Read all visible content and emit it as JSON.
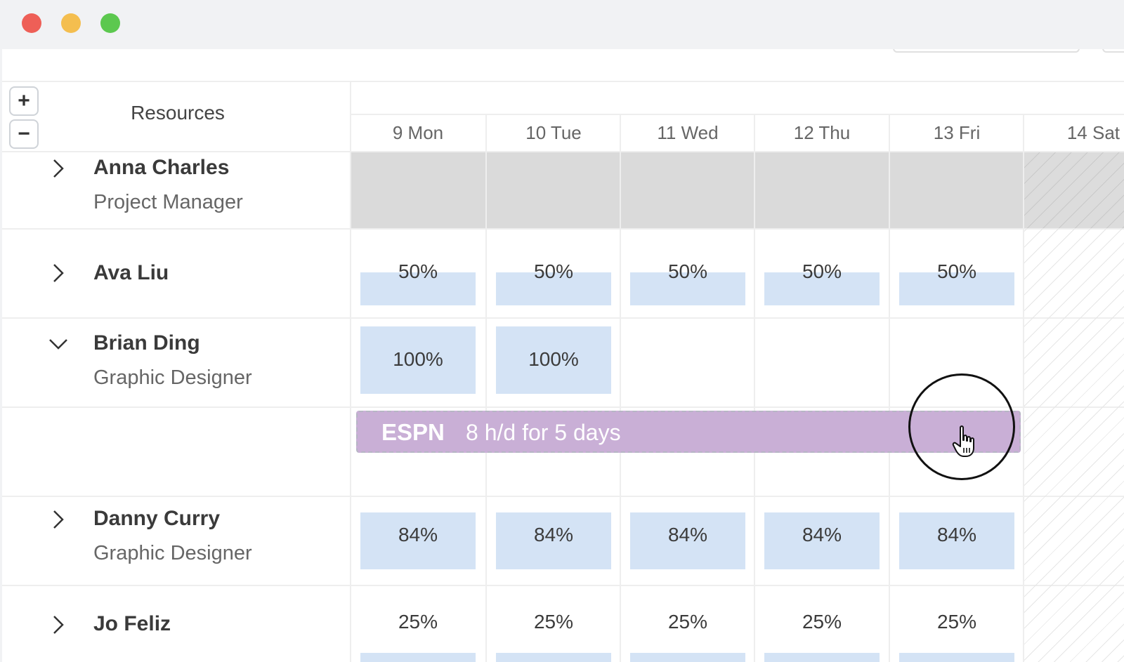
{
  "window": {
    "controls": [
      "close",
      "minimize",
      "maximize"
    ]
  },
  "toolbar": {
    "zoom_in_icon": "plus-icon",
    "zoom_out_icon": "minus-icon",
    "zoom_in_symbol": "+",
    "zoom_out_symbol": "−"
  },
  "header": {
    "resources_label": "Resources",
    "days": [
      "9 Mon",
      "10 Tue",
      "11 Wed",
      "12 Thu",
      "13 Fri",
      "14 Sat"
    ]
  },
  "rows": [
    {
      "name": "Anna Charles",
      "role": "Project Manager",
      "expanded": false,
      "allocations": []
    },
    {
      "name": "Ava Liu",
      "role": "",
      "expanded": false,
      "allocations": [
        "50%",
        "50%",
        "50%",
        "50%",
        "50%"
      ]
    },
    {
      "name": "Brian Ding",
      "role": "Graphic Designer",
      "expanded": true,
      "allocations": [
        "100%",
        "100%"
      ]
    },
    {
      "name": "Danny Curry",
      "role": "Graphic Designer",
      "expanded": false,
      "allocations": [
        "84%",
        "84%",
        "84%",
        "84%",
        "84%"
      ]
    },
    {
      "name": "Jo Feliz",
      "role": "",
      "expanded": false,
      "allocations": [
        "25%",
        "25%",
        "25%",
        "25%",
        "25%"
      ]
    }
  ],
  "task": {
    "project": "ESPN",
    "detail": "8 h/d for 5 days",
    "color": "#c9afd6"
  },
  "colors": {
    "allocation_fill": "#d4e3f5",
    "unavailable_fill": "#dadada"
  },
  "cursor": {
    "icon": "hand-pointer-icon"
  }
}
